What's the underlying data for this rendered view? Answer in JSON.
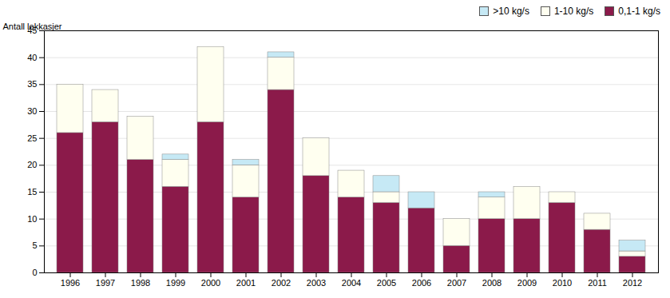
{
  "chart_data": {
    "type": "bar",
    "stacked": true,
    "categories": [
      "1996",
      "1997",
      "1998",
      "1999",
      "2000",
      "2001",
      "2002",
      "2003",
      "2004",
      "2005",
      "2006",
      "2007",
      "2008",
      "2009",
      "2010",
      "2011",
      "2012"
    ],
    "series": [
      {
        "name": "0,1-1 kg/s",
        "color": "#8B1A4A",
        "values": [
          26,
          28,
          21,
          16,
          28,
          14,
          34,
          18,
          14,
          13,
          12,
          5,
          10,
          10,
          13,
          8,
          3
        ]
      },
      {
        "name": "1-10 kg/s",
        "color": "#FFFFF0",
        "values": [
          9,
          6,
          8,
          5,
          14,
          6,
          6,
          7,
          5,
          2,
          0,
          5,
          4,
          6,
          2,
          3,
          1
        ]
      },
      {
        "name": ">10 kg/s",
        "color": "#C6E9F5",
        "values": [
          0,
          0,
          0,
          1,
          0,
          1,
          1,
          0,
          0,
          3,
          3,
          0,
          1,
          0,
          0,
          0,
          2
        ]
      }
    ],
    "ylabel": "Antall lekkasjer",
    "ylim": [
      0,
      45
    ],
    "yticks": [
      0,
      5,
      10,
      15,
      20,
      25,
      30,
      35,
      40,
      45
    ],
    "grid": true,
    "legend": "upper right"
  }
}
